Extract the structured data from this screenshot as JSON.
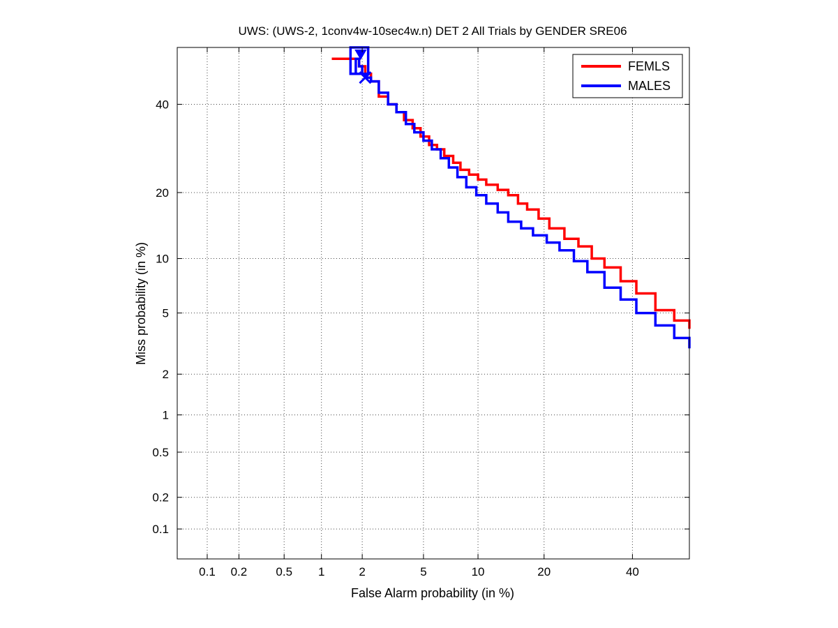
{
  "chart_data": {
    "type": "line",
    "title": "UWS: (UWS-2, 1conv4w-10sec4w.n) DET 2 All Trials by GENDER SRE06",
    "xlabel": "False Alarm probability (in %)",
    "ylabel": "Miss probability (in %)",
    "x_scale": "normal-deviate (probit)",
    "y_scale": "normal-deviate (probit)",
    "xlim": [
      0.05,
      55
    ],
    "ylim": [
      0.05,
      55
    ],
    "xticks": [
      0.1,
      0.2,
      0.5,
      1,
      2,
      5,
      10,
      20,
      40
    ],
    "xtick_labels": [
      "0.1",
      "0.2",
      "0.5",
      "1",
      "2",
      "5",
      "10",
      "20",
      "40"
    ],
    "yticks": [
      0.1,
      0.2,
      0.5,
      1,
      2,
      5,
      10,
      20,
      40
    ],
    "ytick_labels": [
      "0.1",
      "0.2",
      "0.5",
      "1",
      "2",
      "5",
      "10",
      "20",
      "40"
    ],
    "grid": true,
    "legend_position": "top-right",
    "series": [
      {
        "name": "FEMLS",
        "color": "#ff0000",
        "x": [
          1.2,
          1.6,
          1.9,
          2.1,
          2.3,
          2.6,
          3.0,
          3.4,
          3.8,
          4.3,
          4.8,
          5.4,
          6.0,
          6.6,
          7.4,
          8.1,
          9.0,
          10.0,
          11.0,
          12.5,
          14.0,
          15.5,
          17.0,
          19.0,
          21.0,
          24.0,
          27.0,
          30.0,
          33.0,
          37.0,
          41.0,
          46.0,
          51.0,
          55.0
        ],
        "y": [
          52,
          52,
          50,
          48,
          46,
          42,
          40,
          38,
          36,
          34,
          32,
          30,
          29,
          27.5,
          26,
          24.5,
          23.5,
          22.5,
          21.5,
          20.5,
          19.5,
          18,
          17,
          15.5,
          14,
          12.5,
          11.5,
          10,
          9,
          7.6,
          6.5,
          5.2,
          4.5,
          4.0
        ]
      },
      {
        "name": "MALES",
        "color": "#0000ff",
        "x": [
          1.65,
          1.8,
          1.9,
          2.0,
          2.1,
          2.3,
          2.6,
          3.0,
          3.4,
          3.9,
          4.4,
          5.0,
          5.6,
          6.3,
          7.0,
          7.8,
          8.7,
          9.8,
          11.0,
          12.5,
          14.0,
          16.0,
          18.0,
          20.5,
          23.0,
          26.0,
          29.0,
          33.0,
          37.0,
          41.0,
          46.0,
          51.0,
          55.0
        ],
        "y": [
          48,
          52,
          50,
          48,
          47,
          46,
          43,
          40,
          38,
          35,
          33,
          31,
          29,
          27,
          25,
          23,
          21,
          19.5,
          18,
          16.5,
          15,
          14,
          13,
          12,
          11,
          9.7,
          8.5,
          7,
          6,
          5.0,
          4.2,
          3.5,
          3.0
        ]
      }
    ]
  }
}
